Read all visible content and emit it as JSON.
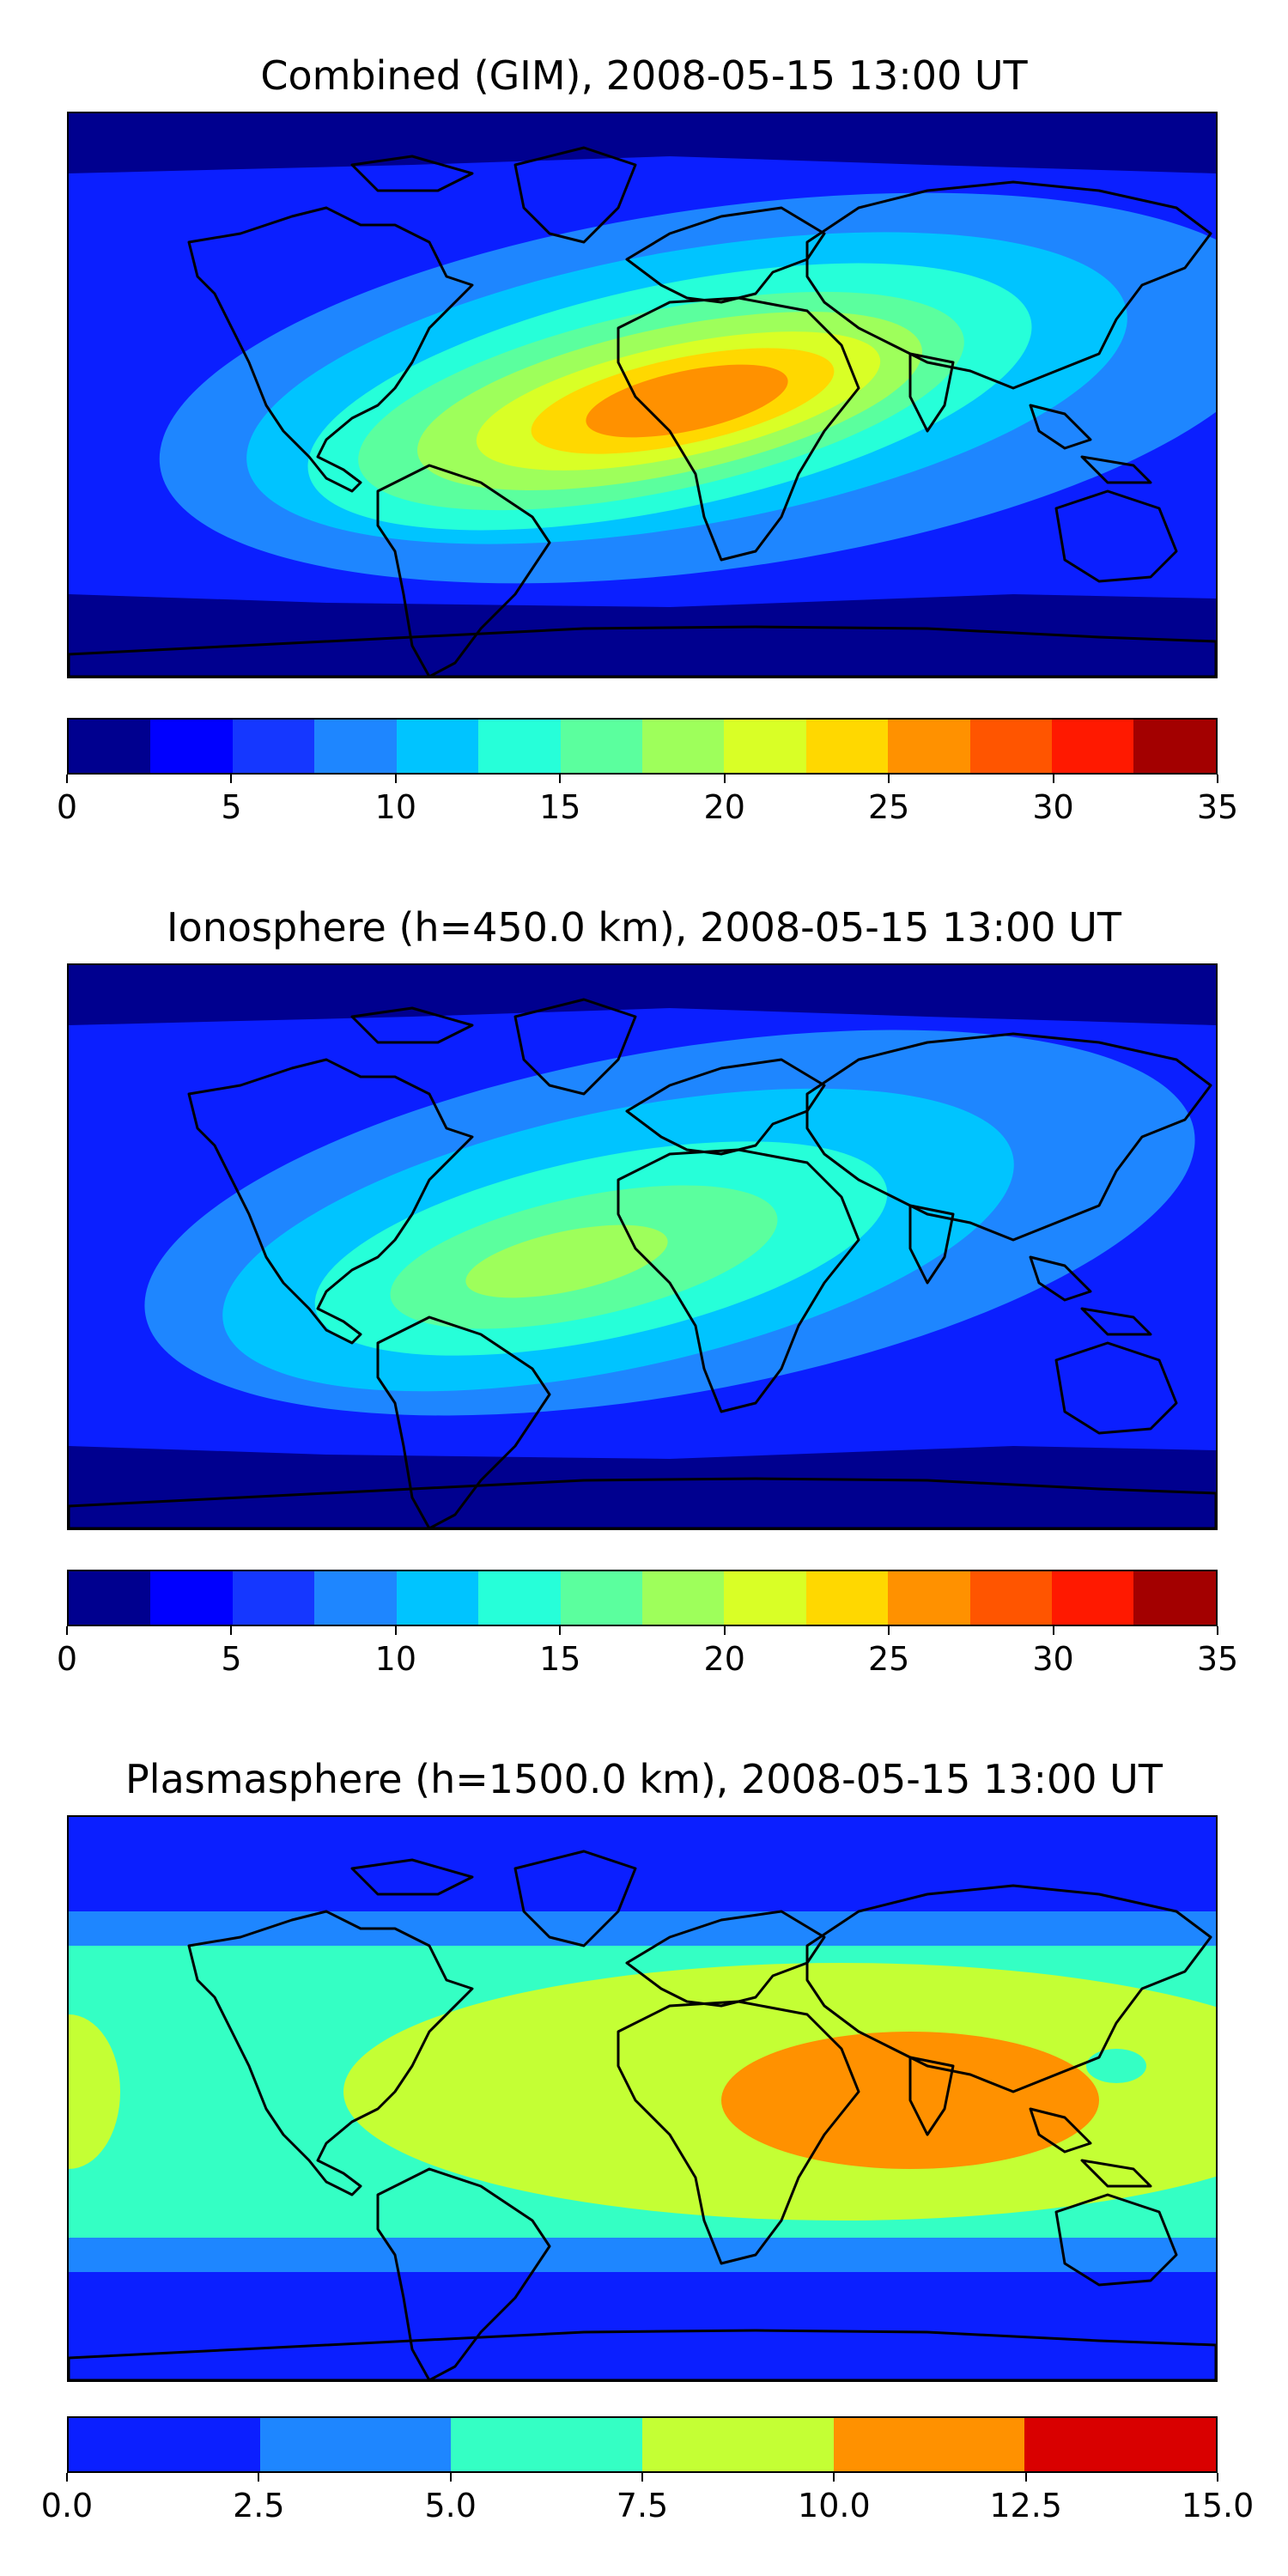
{
  "panels": [
    {
      "title": "Combined (GIM), 2008-05-15 13:00 UT",
      "colorbar": {
        "colors": [
          "#00008f",
          "#0000ff",
          "#1537ff",
          "#1e86ff",
          "#00c4ff",
          "#26ffd9",
          "#5bff9e",
          "#9eff5b",
          "#d9ff26",
          "#ffd800",
          "#ff9100",
          "#ff5500",
          "#ff1900",
          "#a30000"
        ],
        "ticks": [
          "0",
          "5",
          "10",
          "15",
          "20",
          "25",
          "30",
          "35"
        ]
      },
      "field": {
        "base": "#0b1fff",
        "bands": [
          {
            "color": "#1e86ff",
            "level": "7.5-10"
          },
          {
            "color": "#00c4ff",
            "level": "10-12.5"
          },
          {
            "color": "#26ffd9",
            "level": "12.5-15"
          },
          {
            "color": "#5bff9e",
            "level": "15-17.5"
          },
          {
            "color": "#9eff5b",
            "level": "17.5-20"
          },
          {
            "color": "#d9ff26",
            "level": "20-22.5"
          },
          {
            "color": "#ffd800",
            "level": "22.5-25"
          },
          {
            "color": "#ff9100",
            "level": "25-27.5"
          }
        ],
        "low": "#00008f"
      }
    },
    {
      "title": "Ionosphere  (h=450.0 km), 2008-05-15 13:00 UT",
      "colorbar": {
        "colors": [
          "#00008f",
          "#0000ff",
          "#1537ff",
          "#1e86ff",
          "#00c4ff",
          "#26ffd9",
          "#5bff9e",
          "#9eff5b",
          "#d9ff26",
          "#ffd800",
          "#ff9100",
          "#ff5500",
          "#ff1900",
          "#a30000"
        ],
        "ticks": [
          "0",
          "5",
          "10",
          "15",
          "20",
          "25",
          "30",
          "35"
        ]
      },
      "field": {
        "base": "#0b1fff",
        "bands": [
          {
            "color": "#1e86ff",
            "level": "7.5-10"
          },
          {
            "color": "#00c4ff",
            "level": "10-12.5"
          },
          {
            "color": "#26ffd9",
            "level": "12.5-15"
          },
          {
            "color": "#5bff9e",
            "level": "15-17.5"
          },
          {
            "color": "#9eff5b",
            "level": "17.5-20"
          }
        ],
        "low": "#00008f"
      }
    },
    {
      "title": "Plasmasphere (h=1500.0 km), 2008-05-15 13:00 UT",
      "colorbar": {
        "colors": [
          "#0b1fff",
          "#1e86ff",
          "#34ffc4",
          "#c4ff34",
          "#ff9100",
          "#d90000"
        ],
        "ticks": [
          "0.0",
          "2.5",
          "5.0",
          "7.5",
          "10.0",
          "12.5",
          "15.0"
        ]
      },
      "field": {
        "base": "#0b1fff",
        "bands": [
          {
            "color": "#1e86ff",
            "level": "2.5-5"
          },
          {
            "color": "#34ffc4",
            "level": "5-7.5"
          },
          {
            "color": "#c4ff34",
            "level": "7.5-10"
          },
          {
            "color": "#ff9100",
            "level": "10-12.5"
          }
        ],
        "low": "#0b1fff"
      }
    }
  ]
}
